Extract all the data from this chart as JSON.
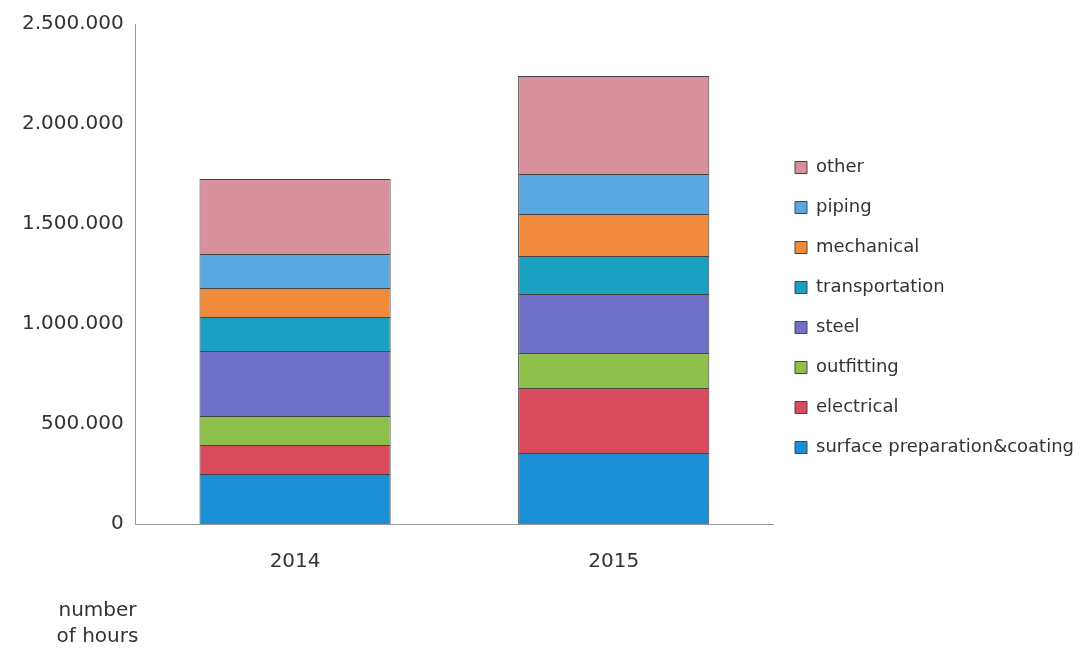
{
  "chart_data": {
    "type": "bar",
    "stacked": true,
    "ylabel": "number of hours",
    "categories": [
      "2014",
      "2015"
    ],
    "series": [
      {
        "name": "surface preparation&coating",
        "color": "#1a8fd6",
        "values": [
          250000,
          355000
        ]
      },
      {
        "name": "electrical",
        "color": "#d84a5c",
        "values": [
          145000,
          325000
        ]
      },
      {
        "name": "outfitting",
        "color": "#8cc04a",
        "values": [
          145000,
          175000
        ]
      },
      {
        "name": "steel",
        "color": "#7070c8",
        "values": [
          325000,
          295000
        ]
      },
      {
        "name": "transportation",
        "color": "#1aa0c0",
        "values": [
          170000,
          190000
        ]
      },
      {
        "name": "mechanical",
        "color": "#f08a3c",
        "values": [
          145000,
          210000
        ]
      },
      {
        "name": "piping",
        "color": "#5aa8e0",
        "values": [
          170000,
          200000
        ]
      },
      {
        "name": "other",
        "color": "#d8909c",
        "values": [
          375000,
          490000
        ]
      }
    ],
    "ylim": [
      0,
      2500000
    ],
    "yticks": [
      {
        "value": 0,
        "label": "0"
      },
      {
        "value": 500000,
        "label": "500.000"
      },
      {
        "value": 1000000,
        "label": "1.000.000"
      },
      {
        "value": 1500000,
        "label": "1.500.000"
      },
      {
        "value": 2000000,
        "label": "2.000.000"
      },
      {
        "value": 2500000,
        "label": "2.500.000"
      }
    ],
    "grid": false,
    "legend": "right"
  }
}
